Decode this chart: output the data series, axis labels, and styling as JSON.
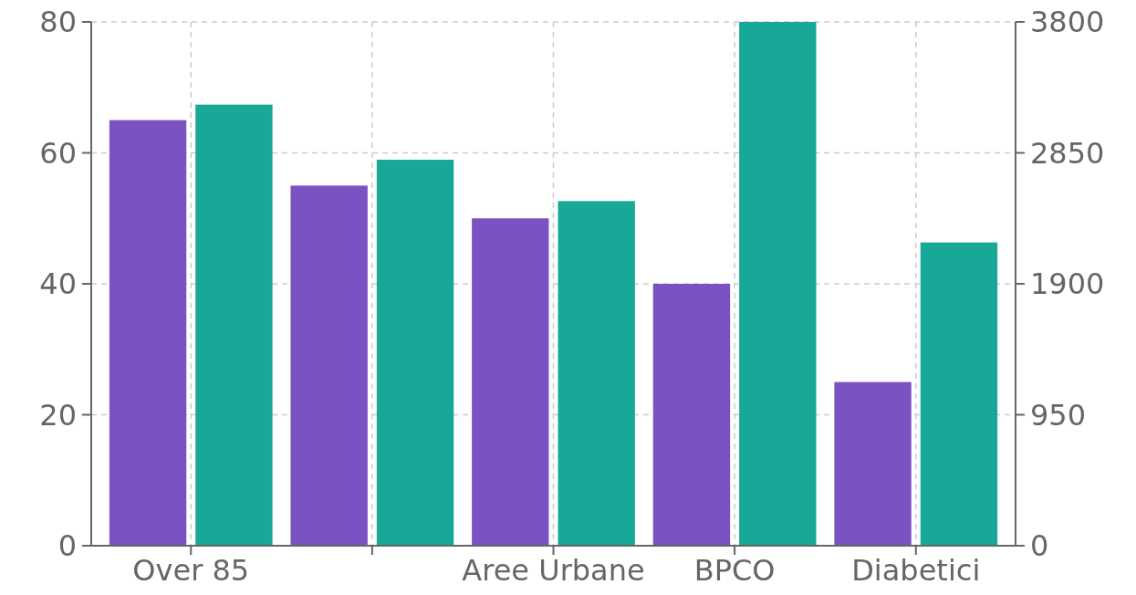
{
  "chart_data": {
    "type": "bar",
    "categories": [
      "Over 85",
      null,
      "Aree Urbane",
      "BPCO",
      "Diabetici"
    ],
    "series": [
      {
        "color": "#7b52c1",
        "values": [
          65,
          55,
          50,
          40,
          25
        ]
      },
      {
        "color": "#17a898",
        "values": [
          3200,
          2800,
          2500,
          3800,
          2200
        ],
        "axis": "y2"
      }
    ],
    "ylim": [
      0,
      80
    ],
    "yticks": [
      0,
      20,
      40,
      60,
      80
    ],
    "y2lim": [
      0,
      3800
    ],
    "y2ticks": [
      0,
      950,
      1900,
      2850,
      3800
    ],
    "grid": true
  }
}
